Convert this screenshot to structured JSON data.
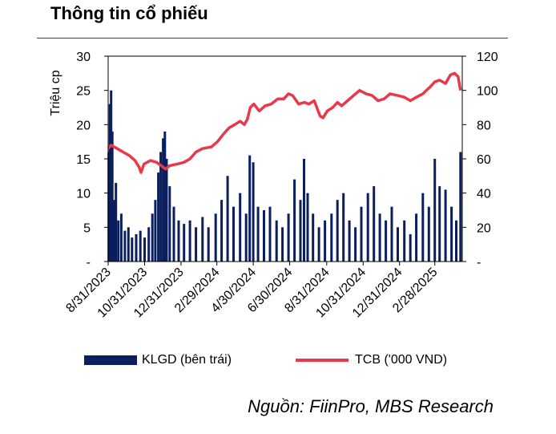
{
  "title": "Thông tin cổ phiếu",
  "source": "Nguồn: FiinPro, MBS Research",
  "legend": {
    "bars": "KLGD (bên trái)",
    "line": "TCB ('000 VND)"
  },
  "colors": {
    "bars": "#0a1f5c",
    "line": "#e8394a"
  },
  "chart_data": {
    "type": "bar+line",
    "ylabel_left": "Triệu cp",
    "ylim_left": [
      0,
      30
    ],
    "yticks_left": [
      "-",
      "5",
      "10",
      "15",
      "20",
      "25",
      "30"
    ],
    "ylim_right": [
      0,
      120
    ],
    "yticks_right": [
      "-",
      "20",
      "40",
      "60",
      "80",
      "100",
      "120"
    ],
    "x_range": [
      "2023-08-31",
      "2025-04-15"
    ],
    "xtick_labels": [
      "8/31/2023",
      "10/31/2023",
      "12/31/2023",
      "2/29/2024",
      "4/30/2024",
      "6/30/2024",
      "8/31/2024",
      "10/31/2024",
      "12/31/2024",
      "2/28/2025"
    ],
    "grid": false,
    "legend_position": "bottom",
    "series": [
      {
        "name": "KLGD (bên trái)",
        "type": "bar",
        "axis": "left",
        "points": [
          [
            "2023-09-01",
            16
          ],
          [
            "2023-09-03",
            23
          ],
          [
            "2023-09-05",
            25
          ],
          [
            "2023-09-07",
            19
          ],
          [
            "2023-09-10",
            9
          ],
          [
            "2023-09-13",
            11.5
          ],
          [
            "2023-09-17",
            6
          ],
          [
            "2023-09-22",
            7
          ],
          [
            "2023-09-28",
            4.5
          ],
          [
            "2023-10-04",
            5
          ],
          [
            "2023-10-10",
            3.5
          ],
          [
            "2023-10-17",
            4
          ],
          [
            "2023-10-24",
            4.5
          ],
          [
            "2023-10-31",
            3.5
          ],
          [
            "2023-11-07",
            5
          ],
          [
            "2023-11-13",
            7
          ],
          [
            "2023-11-18",
            9
          ],
          [
            "2023-11-23",
            13
          ],
          [
            "2023-11-27",
            16
          ],
          [
            "2023-12-01",
            18
          ],
          [
            "2023-12-04",
            19
          ],
          [
            "2023-12-07",
            15
          ],
          [
            "2023-12-12",
            11
          ],
          [
            "2023-12-19",
            8
          ],
          [
            "2023-12-27",
            6
          ],
          [
            "2024-01-05",
            5.5
          ],
          [
            "2024-01-15",
            6
          ],
          [
            "2024-01-25",
            5
          ],
          [
            "2024-02-05",
            6.5
          ],
          [
            "2024-02-15",
            5
          ],
          [
            "2024-02-27",
            7
          ],
          [
            "2024-03-08",
            9
          ],
          [
            "2024-03-18",
            12.5
          ],
          [
            "2024-03-28",
            8
          ],
          [
            "2024-04-08",
            10
          ],
          [
            "2024-04-18",
            7
          ],
          [
            "2024-04-24",
            15.5
          ],
          [
            "2024-04-30",
            14.5
          ],
          [
            "2024-05-08",
            8
          ],
          [
            "2024-05-18",
            7.5
          ],
          [
            "2024-05-28",
            8
          ],
          [
            "2024-06-08",
            6
          ],
          [
            "2024-06-18",
            5
          ],
          [
            "2024-06-28",
            7
          ],
          [
            "2024-07-08",
            12
          ],
          [
            "2024-07-18",
            9
          ],
          [
            "2024-07-24",
            15
          ],
          [
            "2024-07-30",
            10
          ],
          [
            "2024-08-08",
            7
          ],
          [
            "2024-08-18",
            5
          ],
          [
            "2024-08-28",
            6
          ],
          [
            "2024-09-08",
            7
          ],
          [
            "2024-09-18",
            9
          ],
          [
            "2024-09-28",
            10
          ],
          [
            "2024-10-08",
            6
          ],
          [
            "2024-10-18",
            5
          ],
          [
            "2024-10-28",
            8
          ],
          [
            "2024-11-08",
            10
          ],
          [
            "2024-11-18",
            11
          ],
          [
            "2024-11-28",
            7
          ],
          [
            "2024-12-08",
            6
          ],
          [
            "2024-12-18",
            8
          ],
          [
            "2024-12-28",
            5
          ],
          [
            "2025-01-08",
            6
          ],
          [
            "2025-01-18",
            4
          ],
          [
            "2025-01-28",
            7
          ],
          [
            "2025-02-08",
            10
          ],
          [
            "2025-02-18",
            8
          ],
          [
            "2025-02-28",
            15
          ],
          [
            "2025-03-08",
            11
          ],
          [
            "2025-03-18",
            10.5
          ],
          [
            "2025-03-28",
            8
          ],
          [
            "2025-04-05",
            6
          ],
          [
            "2025-04-12",
            16
          ]
        ]
      },
      {
        "name": "TCB ('000 VND)",
        "type": "line",
        "axis": "right",
        "points": [
          [
            "2023-08-31",
            66
          ],
          [
            "2023-09-05",
            68
          ],
          [
            "2023-09-15",
            66
          ],
          [
            "2023-09-25",
            64
          ],
          [
            "2023-10-05",
            62
          ],
          [
            "2023-10-15",
            59
          ],
          [
            "2023-10-22",
            55
          ],
          [
            "2023-10-25",
            52
          ],
          [
            "2023-10-30",
            57
          ],
          [
            "2023-11-10",
            59
          ],
          [
            "2023-11-20",
            58
          ],
          [
            "2023-11-28",
            56
          ],
          [
            "2023-12-05",
            54
          ],
          [
            "2023-12-12",
            56
          ],
          [
            "2023-12-25",
            57
          ],
          [
            "2024-01-05",
            58
          ],
          [
            "2024-01-15",
            60
          ],
          [
            "2024-01-25",
            64
          ],
          [
            "2024-02-05",
            66
          ],
          [
            "2024-02-20",
            67
          ],
          [
            "2024-03-01",
            70
          ],
          [
            "2024-03-10",
            74
          ],
          [
            "2024-03-20",
            78
          ],
          [
            "2024-03-30",
            80
          ],
          [
            "2024-04-08",
            82
          ],
          [
            "2024-04-15",
            80
          ],
          [
            "2024-04-20",
            83
          ],
          [
            "2024-04-25",
            90
          ],
          [
            "2024-05-01",
            92
          ],
          [
            "2024-05-10",
            88
          ],
          [
            "2024-05-20",
            91
          ],
          [
            "2024-05-30",
            92
          ],
          [
            "2024-06-10",
            95
          ],
          [
            "2024-06-20",
            95
          ],
          [
            "2024-06-28",
            98
          ],
          [
            "2024-07-05",
            97
          ],
          [
            "2024-07-15",
            92
          ],
          [
            "2024-07-25",
            93
          ],
          [
            "2024-08-01",
            92
          ],
          [
            "2024-08-10",
            94
          ],
          [
            "2024-08-20",
            85
          ],
          [
            "2024-08-25",
            84
          ],
          [
            "2024-09-01",
            88
          ],
          [
            "2024-09-10",
            90
          ],
          [
            "2024-09-18",
            93
          ],
          [
            "2024-09-25",
            91
          ],
          [
            "2024-10-05",
            94
          ],
          [
            "2024-10-15",
            97
          ],
          [
            "2024-10-25",
            100
          ],
          [
            "2024-11-05",
            98
          ],
          [
            "2024-11-15",
            97
          ],
          [
            "2024-11-25",
            94
          ],
          [
            "2024-12-05",
            95
          ],
          [
            "2024-12-15",
            98
          ],
          [
            "2024-12-28",
            97
          ],
          [
            "2025-01-08",
            96
          ],
          [
            "2025-01-18",
            94
          ],
          [
            "2025-01-28",
            96
          ],
          [
            "2025-02-08",
            98
          ],
          [
            "2025-02-20",
            102
          ],
          [
            "2025-02-28",
            105
          ],
          [
            "2025-03-08",
            106
          ],
          [
            "2025-03-18",
            104
          ],
          [
            "2025-03-26",
            109
          ],
          [
            "2025-04-02",
            110
          ],
          [
            "2025-04-08",
            108
          ],
          [
            "2025-04-12",
            100
          ]
        ]
      }
    ]
  }
}
